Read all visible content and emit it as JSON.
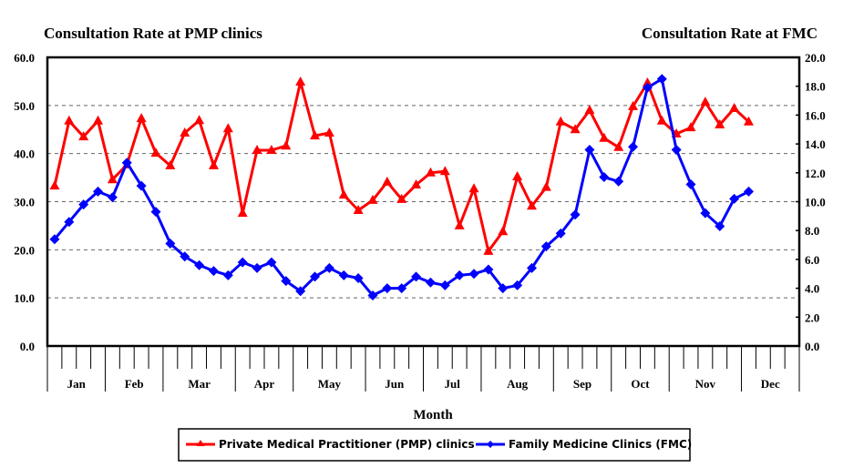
{
  "chart_data": {
    "type": "line",
    "title_left": "Consultation Rate at PMP clinics",
    "title_right": "Consultation Rate at FMC",
    "xlabel": "Month",
    "x_unit": "week",
    "months": [
      {
        "label": "Jan",
        "weeks": 4
      },
      {
        "label": "Feb",
        "weeks": 4
      },
      {
        "label": "Mar",
        "weeks": 5
      },
      {
        "label": "Apr",
        "weeks": 4
      },
      {
        "label": "May",
        "weeks": 5
      },
      {
        "label": "Jun",
        "weeks": 4
      },
      {
        "label": "Jul",
        "weeks": 4
      },
      {
        "label": "Aug",
        "weeks": 5
      },
      {
        "label": "Sep",
        "weeks": 4
      },
      {
        "label": "Oct",
        "weeks": 4
      },
      {
        "label": "Nov",
        "weeks": 5
      },
      {
        "label": "Dec",
        "weeks": 4
      }
    ],
    "y_left": {
      "min": 0,
      "max": 60,
      "step": 10,
      "ticks": [
        "0.0",
        "10.0",
        "20.0",
        "30.0",
        "40.0",
        "50.0",
        "60.0"
      ]
    },
    "y_right": {
      "min": 0,
      "max": 20,
      "step": 2,
      "ticks": [
        "0.0",
        "2.0",
        "4.0",
        "6.0",
        "8.0",
        "10.0",
        "12.0",
        "14.0",
        "16.0",
        "18.0",
        "20.0"
      ]
    },
    "grid": "dashed horizontal",
    "legend_position": "bottom",
    "series": [
      {
        "name": "Private Medical Practitioner (PMP) clinics",
        "axis": "left",
        "color": "#ff0000",
        "marker": "triangle",
        "values": [
          33.3,
          46.8,
          43.5,
          46.8,
          34.6,
          37.7,
          47.3,
          40.1,
          37.5,
          44.3,
          46.9,
          37.5,
          45.2,
          27.6,
          40.7,
          40.7,
          41.6,
          54.9,
          43.7,
          44.3,
          31.4,
          28.2,
          30.3,
          34.1,
          30.5,
          33.5,
          36.0,
          36.3,
          25.0,
          32.7,
          19.7,
          23.8,
          35.2,
          29.1,
          33.0,
          46.6,
          45.0,
          49.0,
          43.2,
          41.3,
          49.8,
          54.7,
          46.8,
          44.1,
          45.4,
          50.7,
          46.0,
          49.4,
          46.6
        ]
      },
      {
        "name": "Family Medicine Clinics (FMC)",
        "axis": "right",
        "color": "#0000ff",
        "marker": "diamond",
        "values": [
          7.4,
          8.6,
          9.8,
          10.7,
          10.3,
          12.7,
          11.1,
          9.3,
          7.1,
          6.2,
          5.6,
          5.2,
          4.9,
          5.8,
          5.4,
          5.8,
          4.5,
          3.8,
          4.8,
          5.4,
          4.9,
          4.7,
          3.5,
          4.0,
          4.0,
          4.8,
          4.4,
          4.2,
          4.9,
          5.0,
          5.3,
          4.0,
          4.2,
          5.4,
          6.9,
          7.8,
          9.1,
          13.6,
          11.7,
          11.4,
          13.8,
          17.9,
          18.5,
          13.6,
          11.2,
          9.2,
          8.3,
          10.2,
          10.7
        ]
      }
    ]
  }
}
